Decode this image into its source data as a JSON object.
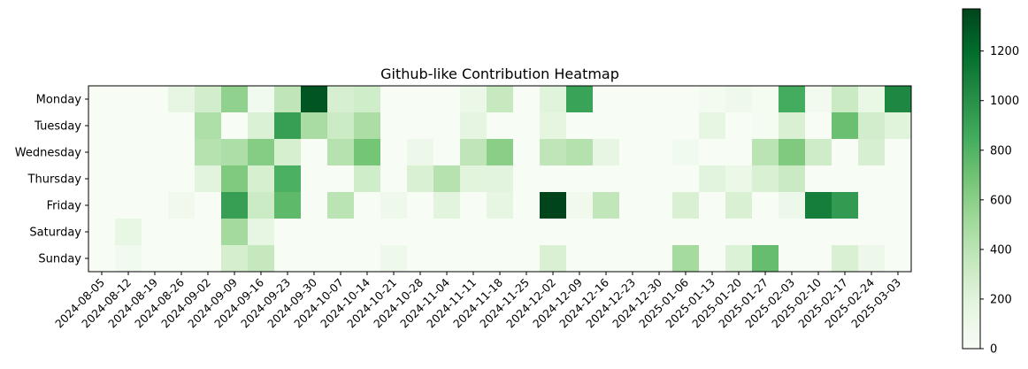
{
  "chart_data": {
    "type": "heatmap",
    "title": "Github-like Contribution Heatmap",
    "colormap": "Greens",
    "x_categories": [
      "2024-08-05",
      "2024-08-12",
      "2024-08-19",
      "2024-08-26",
      "2024-09-02",
      "2024-09-09",
      "2024-09-16",
      "2024-09-23",
      "2024-09-30",
      "2024-10-07",
      "2024-10-14",
      "2024-10-21",
      "2024-10-28",
      "2024-11-04",
      "2024-11-11",
      "2024-11-18",
      "2024-11-25",
      "2024-12-02",
      "2024-12-09",
      "2024-12-16",
      "2024-12-23",
      "2024-12-30",
      "2025-01-06",
      "2025-01-13",
      "2025-01-20",
      "2025-01-27",
      "2025-02-03",
      "2025-02-10",
      "2025-02-17",
      "2025-02-24",
      "2025-03-03"
    ],
    "y_categories": [
      "Monday",
      "Tuesday",
      "Wednesday",
      "Thursday",
      "Friday",
      "Saturday",
      "Sunday"
    ],
    "values": [
      [
        0,
        0,
        0,
        150,
        280,
        580,
        60,
        380,
        1300,
        250,
        290,
        0,
        0,
        0,
        110,
        340,
        0,
        200,
        900,
        0,
        0,
        0,
        0,
        40,
        80,
        30,
        850,
        50,
        330,
        130,
        1050
      ],
      [
        0,
        0,
        0,
        0,
        450,
        0,
        230,
        920,
        480,
        320,
        470,
        0,
        0,
        0,
        160,
        0,
        0,
        170,
        0,
        0,
        0,
        0,
        0,
        150,
        0,
        30,
        240,
        0,
        720,
        280,
        200
      ],
      [
        0,
        0,
        0,
        0,
        420,
        460,
        620,
        260,
        0,
        420,
        680,
        0,
        90,
        0,
        380,
        600,
        0,
        380,
        430,
        150,
        0,
        0,
        60,
        0,
        0,
        400,
        640,
        300,
        0,
        250,
        0
      ],
      [
        0,
        0,
        0,
        0,
        180,
        640,
        260,
        820,
        0,
        0,
        290,
        0,
        240,
        420,
        190,
        180,
        0,
        0,
        0,
        0,
        0,
        0,
        0,
        180,
        110,
        240,
        330,
        0,
        0,
        0,
        0
      ],
      [
        0,
        0,
        0,
        70,
        0,
        920,
        320,
        760,
        0,
        400,
        0,
        80,
        0,
        180,
        0,
        150,
        0,
        1370,
        70,
        370,
        0,
        0,
        240,
        0,
        240,
        0,
        100,
        1100,
        940,
        0,
        0
      ],
      [
        0,
        140,
        0,
        0,
        0,
        500,
        150,
        0,
        0,
        0,
        0,
        0,
        0,
        0,
        0,
        0,
        0,
        0,
        0,
        0,
        0,
        0,
        0,
        0,
        0,
        0,
        0,
        0,
        0,
        0,
        0
      ],
      [
        0,
        60,
        0,
        0,
        0,
        270,
        350,
        0,
        0,
        0,
        0,
        80,
        0,
        0,
        0,
        0,
        0,
        240,
        0,
        0,
        0,
        0,
        490,
        0,
        220,
        730,
        0,
        0,
        240,
        90,
        0
      ]
    ],
    "colorbar": {
      "vmin": 0,
      "vmax": 1370,
      "ticks": [
        0,
        200,
        400,
        600,
        800,
        1000,
        1200
      ]
    },
    "xlabel": "",
    "ylabel": ""
  }
}
